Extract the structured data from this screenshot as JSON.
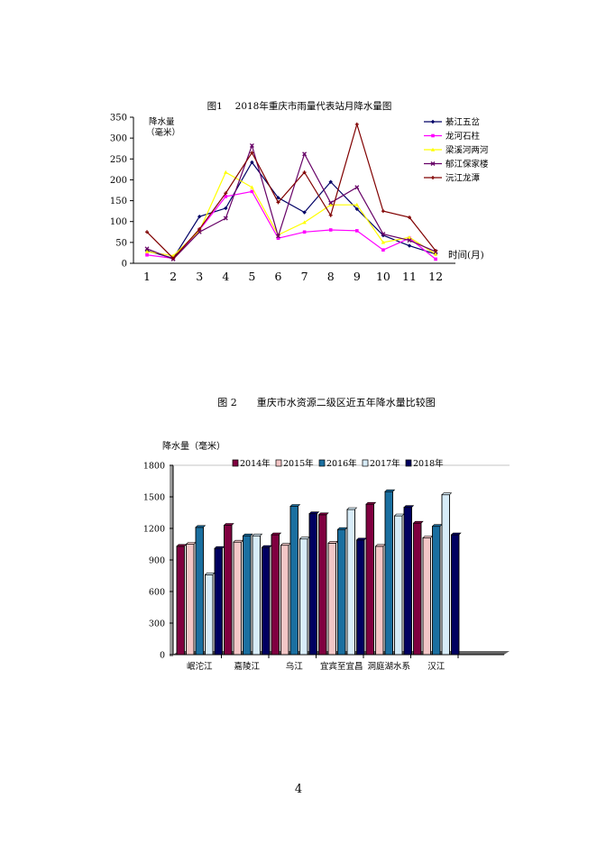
{
  "page_number": "4",
  "chart_data": [
    {
      "type": "line",
      "title": "图1　 2018年重庆市雨量代表站月降水量图",
      "ylabel_line1": "降水量",
      "ylabel_line2": "（毫米）",
      "xlabel": "时间(月)",
      "x": [
        1,
        2,
        3,
        4,
        5,
        6,
        7,
        8,
        9,
        10,
        11,
        12
      ],
      "x_tick_labels": [
        "1",
        "2",
        "3",
        "4",
        "5",
        "6",
        "7",
        "8",
        "9",
        "10",
        "11",
        "12"
      ],
      "ylim": [
        0,
        350
      ],
      "y_ticks": [
        0,
        50,
        100,
        150,
        200,
        250,
        300,
        350
      ],
      "y_tick_labels": [
        "0",
        "50",
        "100",
        "150",
        "200",
        "250",
        "300",
        "350"
      ],
      "legend_position": "top-right",
      "grid": false,
      "series": [
        {
          "name": "綦江五岔",
          "color": "#000066",
          "marker": "diamond",
          "values": [
            30,
            12,
            112,
            132,
            242,
            157,
            122,
            195,
            130,
            67,
            42,
            22
          ]
        },
        {
          "name": "龙河石柱",
          "color": "#ff00ff",
          "marker": "square",
          "values": [
            20,
            12,
            80,
            160,
            172,
            60,
            75,
            80,
            78,
            32,
            60,
            10
          ]
        },
        {
          "name": "梁溪河两河",
          "color": "#ffff00",
          "marker": "triangle",
          "values": [
            28,
            18,
            78,
            218,
            182,
            68,
            98,
            140,
            140,
            50,
            62,
            22
          ]
        },
        {
          "name": "郁江保家楼",
          "color": "#660066",
          "marker": "x",
          "values": [
            35,
            10,
            75,
            108,
            282,
            65,
            262,
            145,
            182,
            70,
            55,
            28
          ]
        },
        {
          "name": "沅江龙潭",
          "color": "#800000",
          "marker": "star",
          "values": [
            75,
            12,
            82,
            168,
            265,
            146,
            218,
            115,
            333,
            125,
            110,
            30
          ]
        }
      ]
    },
    {
      "type": "bar",
      "title": "图 2　　重庆市水资源二级区近五年降水量比较图",
      "ylabel": "降水量（毫米）",
      "categories": [
        "岷沱江",
        "嘉陵江",
        "乌江",
        "宜宾至宜昌",
        "洞庭湖水系",
        "汉江"
      ],
      "ylim": [
        0,
        1800
      ],
      "y_ticks": [
        0,
        300,
        600,
        900,
        1200,
        1500,
        1800
      ],
      "y_tick_labels": [
        "0",
        "300",
        "600",
        "900",
        "1200",
        "1500",
        "1800"
      ],
      "legend_position": "top",
      "grid": false,
      "series": [
        {
          "name": "2014年",
          "color": "#800040",
          "values": [
            1030,
            1230,
            1140,
            1330,
            1430,
            1250
          ]
        },
        {
          "name": "2015年",
          "color": "#f3c6c6",
          "values": [
            1050,
            1070,
            1040,
            1060,
            1030,
            1110
          ]
        },
        {
          "name": "2016年",
          "color": "#1a6fa0",
          "values": [
            1210,
            1130,
            1410,
            1190,
            1550,
            1220
          ]
        },
        {
          "name": "2017年",
          "color": "#d7ecf8",
          "values": [
            760,
            1130,
            1100,
            1380,
            1320,
            1520
          ]
        },
        {
          "name": "2018年",
          "color": "#000060",
          "values": [
            1010,
            1020,
            1340,
            1090,
            1400,
            1140
          ]
        }
      ]
    }
  ]
}
